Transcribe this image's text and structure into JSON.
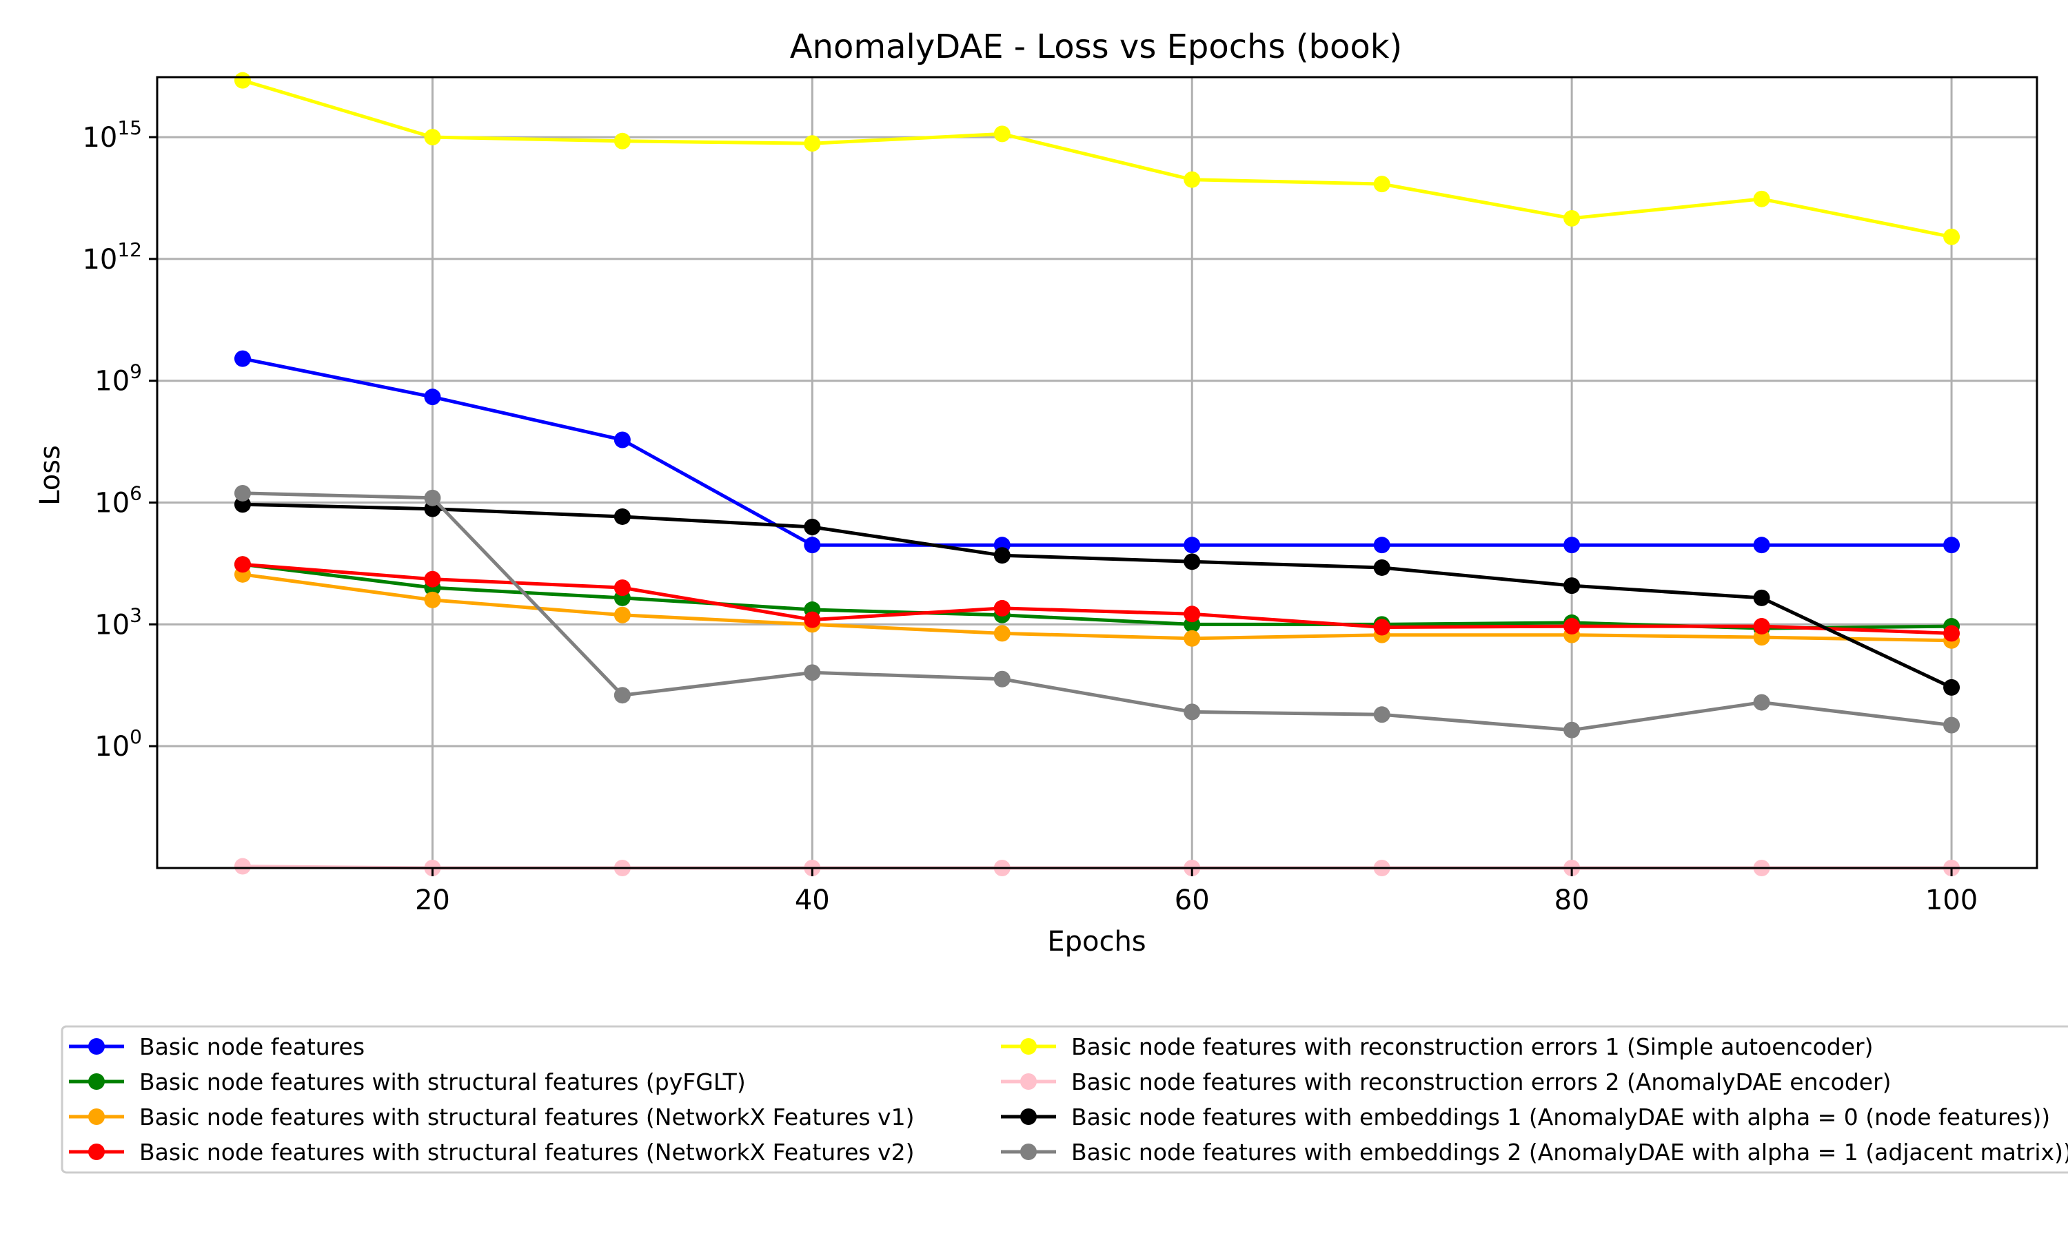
{
  "chart_data": {
    "type": "line",
    "title": "AnomalyDAE - Loss vs Epochs (book)",
    "xlabel": "Epochs",
    "ylabel": "Loss",
    "x": [
      10,
      20,
      30,
      40,
      50,
      60,
      70,
      80,
      90,
      100
    ],
    "xlim": [
      5.5,
      104.5
    ],
    "ylim": [
      0.001,
      3e+16
    ],
    "y_scale": "log",
    "grid": true,
    "legend_position": "bottom",
    "x_ticks": [
      {
        "value": 20,
        "label": "20"
      },
      {
        "value": 40,
        "label": "40"
      },
      {
        "value": 60,
        "label": "60"
      },
      {
        "value": 80,
        "label": "80"
      },
      {
        "value": 100,
        "label": "100"
      }
    ],
    "y_ticks": [
      {
        "value": 1,
        "base": "10",
        "exp": "0"
      },
      {
        "value": 1000,
        "base": "10",
        "exp": "3"
      },
      {
        "value": 1000000,
        "base": "10",
        "exp": "6"
      },
      {
        "value": 1000000000,
        "base": "10",
        "exp": "9"
      },
      {
        "value": 1000000000000,
        "base": "10",
        "exp": "12"
      },
      {
        "value": 1000000000000000,
        "base": "10",
        "exp": "15"
      }
    ],
    "series": [
      {
        "name": "Basic node features",
        "color": "#0000ff",
        "values": [
          3500000000.0,
          400000000.0,
          35000000.0,
          90000.0,
          90000.0,
          90000.0,
          90000.0,
          90000.0,
          90000.0,
          90000.0
        ]
      },
      {
        "name": "Basic node features with structural features (pyFGLT)",
        "color": "#008000",
        "values": [
          30000.0,
          8000,
          4500,
          2300,
          1700,
          1000,
          1000,
          1100,
          800,
          900
        ]
      },
      {
        "name": "Basic node features with structural features (NetworkX Features v1)",
        "color": "#ffa500",
        "values": [
          17000,
          4000,
          1700,
          1000,
          600,
          450,
          550,
          550,
          480,
          400
        ]
      },
      {
        "name": "Basic node features with structural features (NetworkX Features v2)",
        "color": "#ff0000",
        "values": [
          30000.0,
          13000,
          8000,
          1300,
          2500,
          1800,
          850,
          900,
          900,
          600
        ]
      },
      {
        "name": "Basic node features with reconstruction errors 1 (Simple autoencoder)",
        "color": "#ffff00",
        "values": [
          2.5e+16,
          1000000000000000.0,
          800000000000000.0,
          700000000000000.0,
          1200000000000000.0,
          90000000000000.0,
          70000000000000.0,
          10000000000000.0,
          30000000000000.0,
          3500000000000.0
        ]
      },
      {
        "name": "Basic node features with reconstruction errors 2 (AnomalyDAE encoder)",
        "color": "#ffc0cb",
        "values": [
          0.0011,
          0.001,
          0.001,
          0.001,
          0.001,
          0.001,
          0.001,
          0.001,
          0.001,
          0.001
        ]
      },
      {
        "name": "Basic node features with embeddings 1 (AnomalyDAE with alpha = 0 (node features))",
        "color": "#000000",
        "values": [
          900000.0,
          700000.0,
          450000.0,
          250000.0,
          50000.0,
          35000.0,
          25000.0,
          9000,
          4500,
          28
        ]
      },
      {
        "name": "Basic node features with embeddings 2 (AnomalyDAE with alpha = 1 (adjacent matrix))",
        "color": "#808080",
        "values": [
          1700000.0,
          1300000.0,
          18,
          65,
          45,
          7,
          6,
          2.5,
          12,
          3.3
        ]
      }
    ]
  }
}
